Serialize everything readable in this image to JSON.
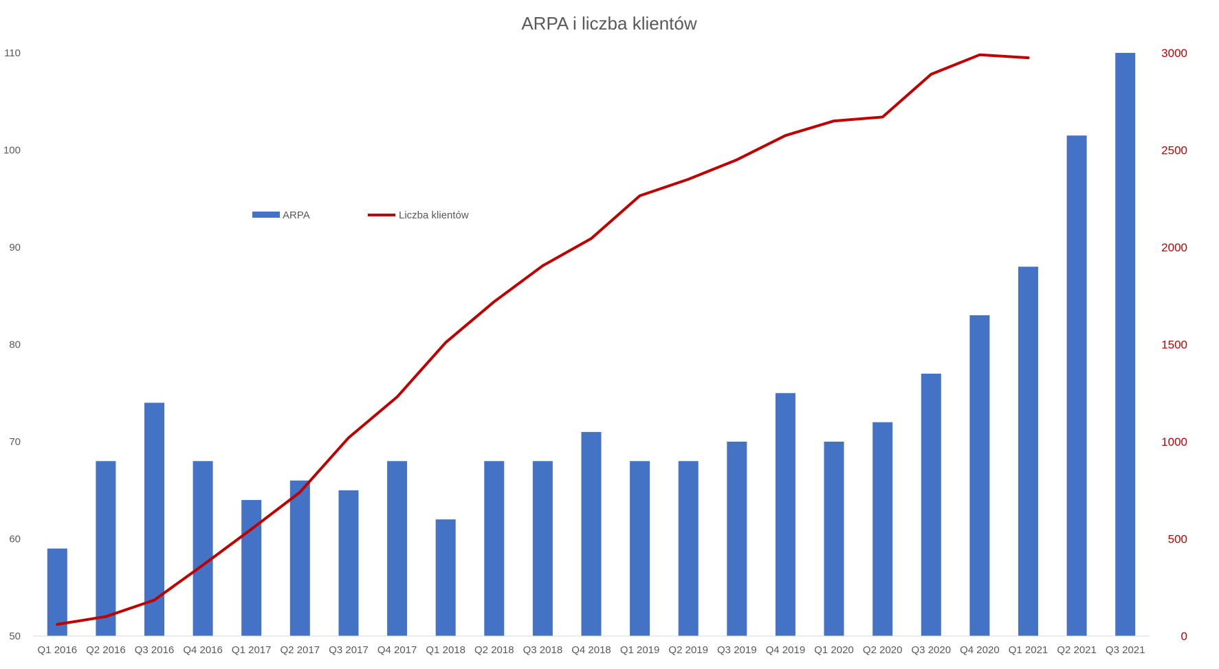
{
  "chart_data": {
    "type": "bar",
    "title": "ARPA i liczba klientów",
    "categories": [
      "Q1 2016",
      "Q2 2016",
      "Q3 2016",
      "Q4 2016",
      "Q1 2017",
      "Q2 2017",
      "Q3 2017",
      "Q4 2017",
      "Q1 2018",
      "Q2 2018",
      "Q3 2018",
      "Q4 2018",
      "Q1 2019",
      "Q2 2019",
      "Q3 2019",
      "Q4 2019",
      "Q1 2020",
      "Q2 2020",
      "Q3 2020",
      "Q4 2020",
      "Q1 2021",
      "Q2 2021",
      "Q3 2021"
    ],
    "series": [
      {
        "name": "ARPA",
        "type": "bar",
        "axis": "left",
        "color": "#4472c4",
        "values": [
          59,
          68,
          74,
          68,
          64,
          66,
          65,
          68,
          62,
          68,
          68,
          71,
          68,
          68,
          70,
          75,
          70,
          72,
          77,
          83,
          88,
          101.5,
          110
        ]
      },
      {
        "name": "Liczba klientów",
        "type": "line",
        "axis": "right",
        "color": "#c00000",
        "values": [
          60,
          100,
          185,
          365,
          550,
          740,
          1020,
          1230,
          1510,
          1720,
          1905,
          2045,
          2265,
          2350,
          2450,
          2575,
          2650,
          2670,
          2890,
          2990,
          2975,
          null,
          null
        ]
      }
    ],
    "y_left": {
      "ylim": [
        50,
        110
      ],
      "ticks": [
        50,
        60,
        70,
        80,
        90,
        100,
        110
      ]
    },
    "y_right": {
      "ylim": [
        0,
        3000
      ],
      "ticks": [
        0,
        500,
        1000,
        1500,
        2000,
        2500,
        3000
      ],
      "color": "#c00000"
    },
    "grid": false,
    "legend": "upper-left-inside"
  }
}
